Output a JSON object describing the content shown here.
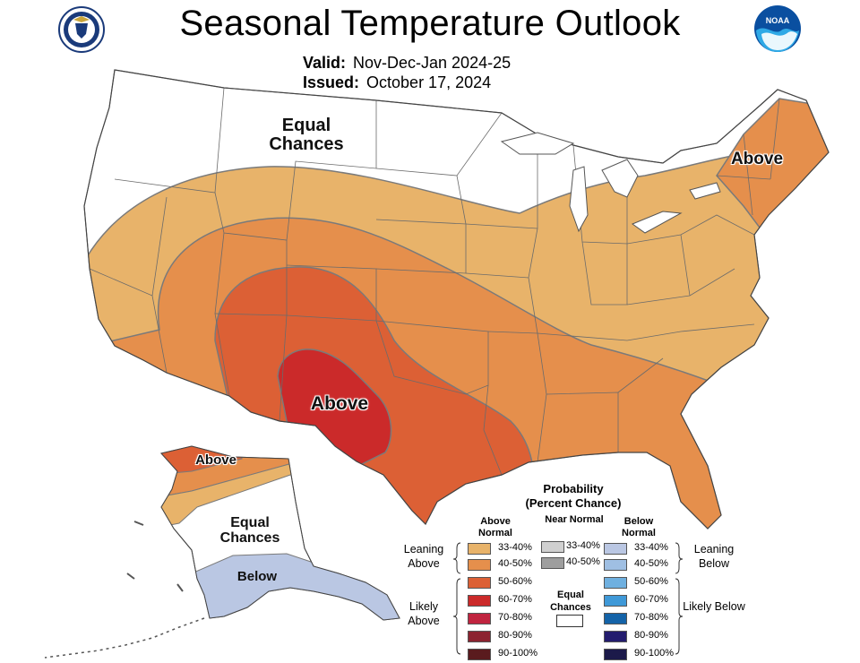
{
  "title": "Seasonal Temperature Outlook",
  "valid": {
    "label": "Valid:",
    "value": "Nov-Dec-Jan 2024-25"
  },
  "issued": {
    "label": "Issued:",
    "value": "October 17, 2024"
  },
  "logos": {
    "left": "doc-seal-icon",
    "right": "noaa-logo-icon"
  },
  "map_labels": {
    "equal_chances_west": "Equal Chances",
    "above_northeast": "Above",
    "above_southwest": "Above",
    "above_alaska": "Above",
    "equal_chances_alaska": "Equal Chances",
    "below_alaska": "Below"
  },
  "colors": {
    "above_33_40": "#e8b36a",
    "above_40_50": "#e58f4c",
    "above_50_60": "#dc6035",
    "above_60_70": "#cb2a2a",
    "above_70_80": "#c0243f",
    "above_80_90": "#8c2330",
    "above_90_100": "#5a1b1e",
    "near_33_40": "#d0d0d0",
    "near_40_50": "#9e9e9e",
    "below_33_40": "#bac7e3",
    "below_40_50": "#9fbfe3",
    "below_50_60": "#6fb0e0",
    "below_60_70": "#3f99d8",
    "below_70_80": "#1463a8",
    "below_80_90": "#231c6e",
    "below_90_100": "#1c1a4a",
    "boundary": "#7a7a7a"
  },
  "legend": {
    "title_line1": "Probability",
    "title_line2": "(Percent Chance)",
    "above_header": "Above Normal",
    "near_header": "Near Normal",
    "below_header": "Below Normal",
    "leaning_above": "Leaning Above",
    "likely_above": "Likely Above",
    "leaning_below": "Leaning Below",
    "likely_below": "Likely Below",
    "equal_chances": "Equal Chances",
    "above_ranges": [
      "33-40%",
      "40-50%",
      "50-60%",
      "60-70%",
      "70-80%",
      "80-90%",
      "90-100%"
    ],
    "near_ranges": [
      "33-40%",
      "40-50%"
    ],
    "below_ranges": [
      "33-40%",
      "40-50%",
      "50-60%",
      "60-70%",
      "70-80%",
      "80-90%",
      "90-100%"
    ]
  }
}
